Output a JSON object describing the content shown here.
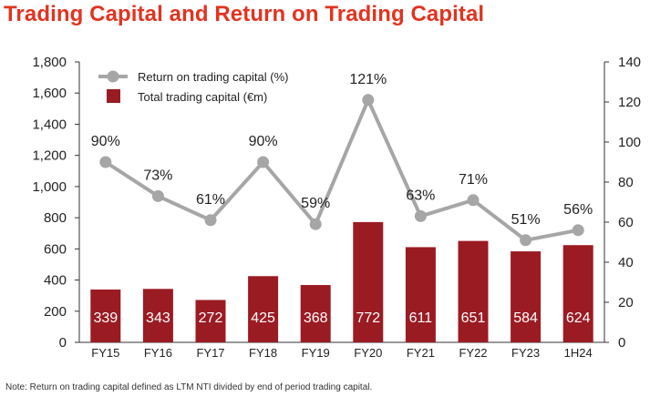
{
  "title": "Trading Capital and Return on Trading Capital",
  "note": "Note: Return on trading capital defined as LTM NTI divided by end of period trading capital.",
  "colors": {
    "title": "#e2331f",
    "bar": "#9b1b23",
    "line": "#a6a6a6",
    "text": "#222222"
  },
  "chart_data": {
    "type": "bar",
    "categories": [
      "FY15",
      "FY16",
      "FY17",
      "FY18",
      "FY19",
      "FY20",
      "FY21",
      "FY22",
      "FY23",
      "1H24"
    ],
    "series": [
      {
        "name": "Total trading capital (€m)",
        "type": "bar",
        "axis": "left",
        "values": [
          339,
          343,
          272,
          425,
          368,
          772,
          611,
          651,
          584,
          624
        ],
        "labels": [
          "339",
          "343",
          "272",
          "425",
          "368",
          "772",
          "611",
          "651",
          "584",
          "624"
        ]
      },
      {
        "name": "Return on trading capital (%)",
        "type": "line",
        "axis": "right",
        "values": [
          90,
          73,
          61,
          90,
          59,
          121,
          63,
          71,
          51,
          56
        ],
        "labels": [
          "90%",
          "73%",
          "61%",
          "90%",
          "59%",
          "121%",
          "63%",
          "71%",
          "51%",
          "56%"
        ]
      }
    ],
    "y_left": {
      "min": 0,
      "max": 1800,
      "ticks": [
        0,
        200,
        400,
        600,
        800,
        1000,
        1200,
        1400,
        1600,
        1800
      ],
      "tick_labels": [
        "0",
        "200",
        "400",
        "600",
        "800",
        "1,000",
        "1,200",
        "1,400",
        "1,600",
        "1,800"
      ]
    },
    "y_right": {
      "min": 0,
      "max": 140,
      "ticks": [
        0,
        20,
        40,
        60,
        80,
        100,
        120,
        140
      ],
      "tick_labels": [
        "0",
        "20",
        "40",
        "60",
        "80",
        "100",
        "120",
        "140"
      ]
    },
    "legend_position": "top-left",
    "grid": false
  }
}
